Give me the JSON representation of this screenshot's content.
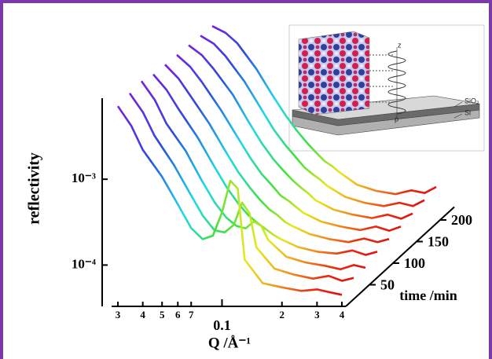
{
  "chart_data": {
    "type": "waterfall",
    "x_label": "Q /Å⁻¹",
    "y_label": "reflectivity",
    "z_label": "time /min",
    "log_x": true,
    "log_y": true,
    "xlim": [
      0.03,
      0.4
    ],
    "xticks": [
      {
        "value": 0.03,
        "label": "3"
      },
      {
        "value": 0.04,
        "label": "4"
      },
      {
        "value": 0.05,
        "label": "5"
      },
      {
        "value": 0.06,
        "label": "6"
      },
      {
        "value": 0.07,
        "label": "7"
      },
      0.1,
      {
        "value": 0.2,
        "label": "2"
      },
      {
        "value": 0.3,
        "label": "3"
      },
      {
        "value": 0.4,
        "label": "4"
      }
    ],
    "ylim": [
      3.3e-05,
      0.0088
    ],
    "yticks": [
      {
        "value": 0.001,
        "label": "10⁻³"
      },
      {
        "value": 0.0001,
        "label": "10⁻⁴"
      }
    ],
    "zlim": [
      0,
      230
    ],
    "zticks": [
      50,
      100,
      150,
      200
    ],
    "colors": [
      "#7a1fe0",
      "#2a4ce0",
      "#20d8e8",
      "#40e040",
      "#e8e820",
      "#f09020",
      "#e83010",
      "#e01010"
    ],
    "x": [
      0.03,
      0.035,
      0.04,
      0.05,
      0.06,
      0.07,
      0.08,
      0.09,
      0.1,
      0.11,
      0.12,
      0.13,
      0.16,
      0.2,
      0.25,
      0.3,
      0.35,
      0.4
    ],
    "series": [
      {
        "time": 0,
        "values": [
          0.0071,
          0.0042,
          0.0022,
          0.00107,
          0.00051,
          0.00027,
          0.0002,
          0.00022,
          0.00041,
          0.00096,
          0.00078,
          0.000116,
          6.15e-05,
          5.5e-05,
          5e-05,
          5.2e-05,
          4.8e-05,
          4.5e-05
        ]
      },
      {
        "time": 25,
        "values": [
          0.0075,
          0.0045,
          0.0024,
          0.0011,
          0.00052,
          0.00028,
          0.00019,
          0.00018,
          0.00022,
          0.0004,
          0.0003,
          0.00012,
          6.8e-05,
          5.8e-05,
          5.2e-05,
          5.6e-05,
          4.9e-05,
          5.3e-05
        ]
      },
      {
        "time": 50,
        "values": [
          0.0078,
          0.0047,
          0.0025,
          0.0012,
          0.00055,
          0.0003,
          0.0002,
          0.00016,
          0.00015,
          0.00018,
          0.00016,
          0.00011,
          7e-05,
          6e-05,
          5.5e-05,
          5e-05,
          5.6e-05,
          5.2e-05
        ]
      },
      {
        "time": 75,
        "values": [
          0.007,
          0.0046,
          0.0028,
          0.0013,
          0.00062,
          0.00034,
          0.00022,
          0.00016,
          0.00013,
          0.00011,
          9.5e-05,
          8.5e-05,
          6.8e-05,
          6e-05,
          5.7e-05,
          6.2e-05,
          5.5e-05,
          6e-05
        ]
      },
      {
        "time": 100,
        "values": [
          0.0068,
          0.0047,
          0.003,
          0.0014,
          0.00068,
          0.00038,
          0.00025,
          0.00018,
          0.00014,
          0.00012,
          0.0001,
          9e-05,
          7.2e-05,
          6.3e-05,
          5.8e-05,
          6.4e-05,
          5.8e-05,
          6.3e-05
        ]
      },
      {
        "time": 125,
        "values": [
          0.0066,
          0.0048,
          0.0032,
          0.0015,
          0.00075,
          0.00042,
          0.00027,
          0.0002,
          0.00015,
          0.00013,
          0.00011,
          9.5e-05,
          7.5e-05,
          6.6e-05,
          6e-05,
          6.6e-05,
          5.9e-05,
          6.6e-05
        ]
      },
      {
        "time": 150,
        "values": [
          0.0064,
          0.0049,
          0.0034,
          0.0017,
          0.00082,
          0.00046,
          0.0003,
          0.00022,
          0.00017,
          0.00014,
          0.00012,
          0.0001,
          7.8e-05,
          6.8e-05,
          6.2e-05,
          6.8e-05,
          6.1e-05,
          7e-05
        ]
      },
      {
        "time": 175,
        "values": [
          0.0062,
          0.005,
          0.0036,
          0.0018,
          0.0009,
          0.0005,
          0.00033,
          0.00024,
          0.00018,
          0.00015,
          0.00013,
          0.00011,
          8.2e-05,
          7e-05,
          6.4e-05,
          7e-05,
          6.4e-05,
          7.5e-05
        ]
      },
      {
        "time": 200,
        "values": [
          0.006,
          0.005,
          0.0038,
          0.0019,
          0.00095,
          0.00055,
          0.00036,
          0.00026,
          0.0002,
          0.00016,
          0.00014,
          0.00012,
          8.5e-05,
          7.2e-05,
          6.6e-05,
          7.3e-05,
          6.8e-05,
          8e-05
        ]
      }
    ]
  },
  "inset": {
    "labels": {
      "z": "z",
      "sio2": "SiO₂",
      "si": "Si",
      "rho": "ρ"
    }
  }
}
